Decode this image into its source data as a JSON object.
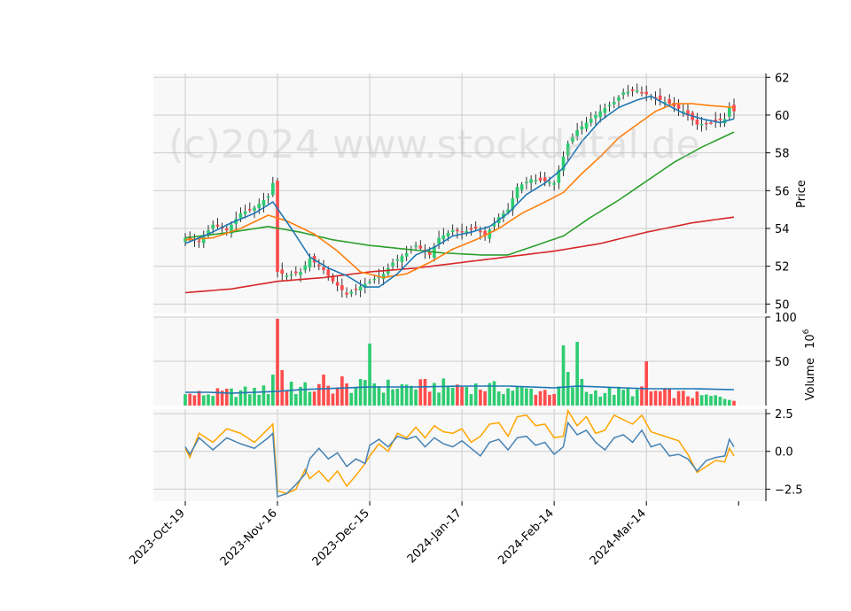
{
  "chart_data": {
    "type": "candlestick-with-volume-and-oscillator",
    "watermark": "(c)2024 www.stockdatal.de",
    "colors": {
      "up": "#2ecc71",
      "down": "#ff4d4d",
      "ma_fast": "#1f77b4",
      "ma_mid": "#ff7f0e",
      "ma_slow": "#2ca02c",
      "ma_long": "#d62728",
      "volume_ma": "#1f77b4",
      "osc_a": "#4682b4",
      "osc_b": "#ffa500",
      "grid": "#cccccc",
      "panel_bg": "#f8f8f8"
    },
    "x_tick_labels": [
      "2023-Oct-19",
      "2023-Nov-16",
      "2023-Dec-15",
      "2024-Jan-17",
      "2024-Feb-14",
      "2024-Mar-14"
    ],
    "x_tick_index": [
      0,
      20,
      40,
      60,
      80,
      100
    ],
    "n_sessions": 120,
    "price_panel": {
      "ylabel": "Price",
      "ylim": [
        49.5,
        62.2
      ],
      "yticks": [
        "50",
        "52",
        "54",
        "56",
        "58",
        "60",
        "62"
      ],
      "ytick_values": [
        50,
        52,
        54,
        56,
        58,
        60,
        62
      ],
      "close_anchors": [
        [
          0,
          53.5
        ],
        [
          3,
          53.3
        ],
        [
          6,
          54.2
        ],
        [
          9,
          53.9
        ],
        [
          12,
          54.8
        ],
        [
          15,
          55.1
        ],
        [
          18,
          55.7
        ],
        [
          19,
          56.4
        ],
        [
          20,
          51.7
        ],
        [
          22,
          51.5
        ],
        [
          25,
          51.7
        ],
        [
          27,
          52.4
        ],
        [
          30,
          51.8
        ],
        [
          32,
          51.2
        ],
        [
          35,
          50.5
        ],
        [
          37,
          50.8
        ],
        [
          40,
          51.2
        ],
        [
          43,
          51.6
        ],
        [
          45,
          52.2
        ],
        [
          48,
          52.7
        ],
        [
          50,
          53.1
        ],
        [
          53,
          52.6
        ],
        [
          55,
          53.5
        ],
        [
          58,
          53.9
        ],
        [
          60,
          53.8
        ],
        [
          63,
          54.0
        ],
        [
          65,
          53.6
        ],
        [
          68,
          54.6
        ],
        [
          70,
          55.0
        ],
        [
          72,
          56.2
        ],
        [
          75,
          56.6
        ],
        [
          78,
          56.5
        ],
        [
          80,
          56.4
        ],
        [
          83,
          58.5
        ],
        [
          85,
          59.2
        ],
        [
          88,
          59.8
        ],
        [
          90,
          60.2
        ],
        [
          93,
          60.7
        ],
        [
          95,
          61.2
        ],
        [
          98,
          61.3
        ],
        [
          100,
          61.1
        ],
        [
          102,
          60.9
        ],
        [
          105,
          60.6
        ],
        [
          108,
          60.2
        ],
        [
          111,
          59.5
        ],
        [
          114,
          59.6
        ],
        [
          117,
          59.8
        ],
        [
          118,
          60.4
        ],
        [
          119,
          60.2
        ]
      ],
      "ma_fast_anchors": [
        [
          0,
          53.2
        ],
        [
          5,
          53.7
        ],
        [
          10,
          54.3
        ],
        [
          15,
          54.8
        ],
        [
          19,
          55.4
        ],
        [
          23,
          54.0
        ],
        [
          27,
          52.5
        ],
        [
          31,
          51.9
        ],
        [
          35,
          51.5
        ],
        [
          39,
          50.9
        ],
        [
          42,
          50.9
        ],
        [
          46,
          51.6
        ],
        [
          50,
          52.6
        ],
        [
          54,
          53.0
        ],
        [
          58,
          53.6
        ],
        [
          62,
          53.8
        ],
        [
          66,
          54.1
        ],
        [
          70,
          54.8
        ],
        [
          74,
          55.8
        ],
        [
          78,
          56.4
        ],
        [
          82,
          57.2
        ],
        [
          86,
          58.6
        ],
        [
          90,
          59.7
        ],
        [
          94,
          60.4
        ],
        [
          98,
          60.8
        ],
        [
          101,
          61.0
        ],
        [
          104,
          60.6
        ],
        [
          108,
          60.1
        ],
        [
          112,
          59.8
        ],
        [
          116,
          59.6
        ],
        [
          119,
          59.8
        ]
      ],
      "ma_mid_anchors": [
        [
          0,
          53.4
        ],
        [
          6,
          53.5
        ],
        [
          12,
          54.0
        ],
        [
          18,
          54.7
        ],
        [
          22,
          54.4
        ],
        [
          28,
          53.7
        ],
        [
          33,
          52.8
        ],
        [
          38,
          51.7
        ],
        [
          43,
          51.4
        ],
        [
          48,
          51.6
        ],
        [
          53,
          52.2
        ],
        [
          58,
          52.9
        ],
        [
          63,
          53.4
        ],
        [
          68,
          54.0
        ],
        [
          73,
          54.8
        ],
        [
          78,
          55.4
        ],
        [
          82,
          55.9
        ],
        [
          86,
          56.9
        ],
        [
          90,
          57.8
        ],
        [
          94,
          58.8
        ],
        [
          98,
          59.5
        ],
        [
          102,
          60.2
        ],
        [
          106,
          60.6
        ],
        [
          110,
          60.6
        ],
        [
          114,
          60.5
        ],
        [
          119,
          60.4
        ]
      ],
      "ma_slow_anchors": [
        [
          0,
          53.5
        ],
        [
          10,
          53.8
        ],
        [
          18,
          54.1
        ],
        [
          25,
          53.8
        ],
        [
          32,
          53.4
        ],
        [
          40,
          53.1
        ],
        [
          48,
          52.9
        ],
        [
          56,
          52.7
        ],
        [
          64,
          52.6
        ],
        [
          70,
          52.6
        ],
        [
          76,
          53.1
        ],
        [
          82,
          53.6
        ],
        [
          88,
          54.6
        ],
        [
          94,
          55.5
        ],
        [
          100,
          56.5
        ],
        [
          106,
          57.5
        ],
        [
          112,
          58.3
        ],
        [
          119,
          59.1
        ]
      ],
      "ma_long_anchors": [
        [
          0,
          50.6
        ],
        [
          10,
          50.8
        ],
        [
          20,
          51.2
        ],
        [
          30,
          51.4
        ],
        [
          40,
          51.7
        ],
        [
          50,
          51.9
        ],
        [
          60,
          52.2
        ],
        [
          70,
          52.5
        ],
        [
          80,
          52.8
        ],
        [
          90,
          53.2
        ],
        [
          100,
          53.8
        ],
        [
          110,
          54.3
        ],
        [
          119,
          54.6
        ]
      ]
    },
    "volume_panel": {
      "ylabel": "Volume",
      "ylabel_exp": "6",
      "ylim": [
        0,
        100
      ],
      "yticks": [
        "50",
        "100"
      ],
      "ytick_values": [
        50,
        100
      ],
      "spikes": [
        [
          20,
          98
        ],
        [
          21,
          40
        ],
        [
          19,
          35
        ],
        [
          23,
          27
        ],
        [
          30,
          35
        ],
        [
          34,
          33
        ],
        [
          40,
          70
        ],
        [
          41,
          25
        ],
        [
          82,
          68
        ],
        [
          83,
          38
        ],
        [
          85,
          72
        ],
        [
          86,
          30
        ],
        [
          100,
          50
        ]
      ],
      "base_anchors": [
        [
          0,
          12
        ],
        [
          20,
          18
        ],
        [
          40,
          22
        ],
        [
          60,
          22
        ],
        [
          80,
          16
        ],
        [
          100,
          16
        ],
        [
          119,
          8
        ]
      ],
      "ma_anchors": [
        [
          0,
          15
        ],
        [
          5,
          15
        ],
        [
          10,
          14
        ],
        [
          20,
          16
        ],
        [
          25,
          18
        ],
        [
          30,
          19
        ],
        [
          40,
          21
        ],
        [
          50,
          21
        ],
        [
          60,
          22
        ],
        [
          70,
          22
        ],
        [
          75,
          21
        ],
        [
          80,
          20
        ],
        [
          85,
          22
        ],
        [
          90,
          21
        ],
        [
          100,
          19
        ],
        [
          110,
          19
        ],
        [
          119,
          18
        ]
      ]
    },
    "osc_panel": {
      "ylim": [
        -3.3,
        2.8
      ],
      "yticks": [
        "−2.5",
        "0.0",
        "2.5"
      ],
      "ytick_values": [
        -2.5,
        0,
        2.5
      ],
      "line_a_anchors": [
        [
          0,
          0.3
        ],
        [
          1,
          -0.2
        ],
        [
          3,
          0.9
        ],
        [
          6,
          0.1
        ],
        [
          9,
          0.9
        ],
        [
          12,
          0.5
        ],
        [
          15,
          0.2
        ],
        [
          18,
          0.9
        ],
        [
          19,
          1.2
        ],
        [
          20,
          -3.0
        ],
        [
          22,
          -2.8
        ],
        [
          24,
          -2.2
        ],
        [
          26,
          -1.5
        ],
        [
          27,
          -0.5
        ],
        [
          29,
          0.2
        ],
        [
          31,
          -0.5
        ],
        [
          33,
          -0.1
        ],
        [
          35,
          -1.0
        ],
        [
          37,
          -0.5
        ],
        [
          39,
          -0.8
        ],
        [
          40,
          0.4
        ],
        [
          42,
          0.8
        ],
        [
          44,
          0.3
        ],
        [
          46,
          1.0
        ],
        [
          48,
          0.8
        ],
        [
          50,
          1.0
        ],
        [
          52,
          0.3
        ],
        [
          54,
          0.9
        ],
        [
          56,
          0.5
        ],
        [
          58,
          0.3
        ],
        [
          60,
          0.7
        ],
        [
          62,
          0.2
        ],
        [
          64,
          -0.3
        ],
        [
          66,
          0.6
        ],
        [
          68,
          0.8
        ],
        [
          70,
          0.1
        ],
        [
          72,
          0.9
        ],
        [
          74,
          1.0
        ],
        [
          76,
          0.4
        ],
        [
          78,
          0.6
        ],
        [
          80,
          -0.2
        ],
        [
          82,
          0.3
        ],
        [
          83,
          1.9
        ],
        [
          85,
          1.1
        ],
        [
          87,
          1.4
        ],
        [
          89,
          0.6
        ],
        [
          91,
          0.1
        ],
        [
          93,
          0.9
        ],
        [
          95,
          1.1
        ],
        [
          97,
          0.6
        ],
        [
          99,
          1.4
        ],
        [
          101,
          0.3
        ],
        [
          103,
          0.5
        ],
        [
          105,
          -0.3
        ],
        [
          107,
          -0.2
        ],
        [
          109,
          -0.5
        ],
        [
          111,
          -1.3
        ],
        [
          113,
          -0.6
        ],
        [
          115,
          -0.4
        ],
        [
          117,
          -0.3
        ],
        [
          118,
          0.8
        ],
        [
          119,
          0.3
        ]
      ],
      "line_b_anchors": [
        [
          0,
          0.2
        ],
        [
          1,
          -0.4
        ],
        [
          3,
          1.2
        ],
        [
          6,
          0.6
        ],
        [
          9,
          1.5
        ],
        [
          12,
          1.2
        ],
        [
          15,
          0.6
        ],
        [
          18,
          1.5
        ],
        [
          19,
          1.8
        ],
        [
          20,
          -2.6
        ],
        [
          22,
          -2.8
        ],
        [
          24,
          -2.5
        ],
        [
          26,
          -1.2
        ],
        [
          27,
          -1.8
        ],
        [
          29,
          -1.3
        ],
        [
          31,
          -2.0
        ],
        [
          33,
          -1.3
        ],
        [
          35,
          -2.3
        ],
        [
          37,
          -1.6
        ],
        [
          39,
          -0.8
        ],
        [
          40,
          -0.3
        ],
        [
          42,
          0.5
        ],
        [
          44,
          0.0
        ],
        [
          46,
          1.2
        ],
        [
          48,
          0.9
        ],
        [
          50,
          1.6
        ],
        [
          52,
          0.9
        ],
        [
          54,
          1.7
        ],
        [
          56,
          1.3
        ],
        [
          58,
          1.2
        ],
        [
          60,
          1.5
        ],
        [
          62,
          0.6
        ],
        [
          64,
          1.0
        ],
        [
          66,
          1.8
        ],
        [
          68,
          1.9
        ],
        [
          70,
          1.0
        ],
        [
          72,
          2.3
        ],
        [
          74,
          2.4
        ],
        [
          76,
          1.7
        ],
        [
          78,
          1.8
        ],
        [
          80,
          0.9
        ],
        [
          82,
          1.0
        ],
        [
          83,
          2.7
        ],
        [
          85,
          1.7
        ],
        [
          87,
          2.3
        ],
        [
          89,
          1.2
        ],
        [
          91,
          1.4
        ],
        [
          93,
          2.4
        ],
        [
          95,
          2.1
        ],
        [
          97,
          1.8
        ],
        [
          99,
          2.4
        ],
        [
          101,
          1.3
        ],
        [
          103,
          1.1
        ],
        [
          105,
          0.9
        ],
        [
          107,
          0.7
        ],
        [
          109,
          -0.2
        ],
        [
          111,
          -1.4
        ],
        [
          113,
          -1.0
        ],
        [
          115,
          -0.6
        ],
        [
          117,
          -0.7
        ],
        [
          118,
          0.2
        ],
        [
          119,
          -0.3
        ]
      ]
    }
  }
}
